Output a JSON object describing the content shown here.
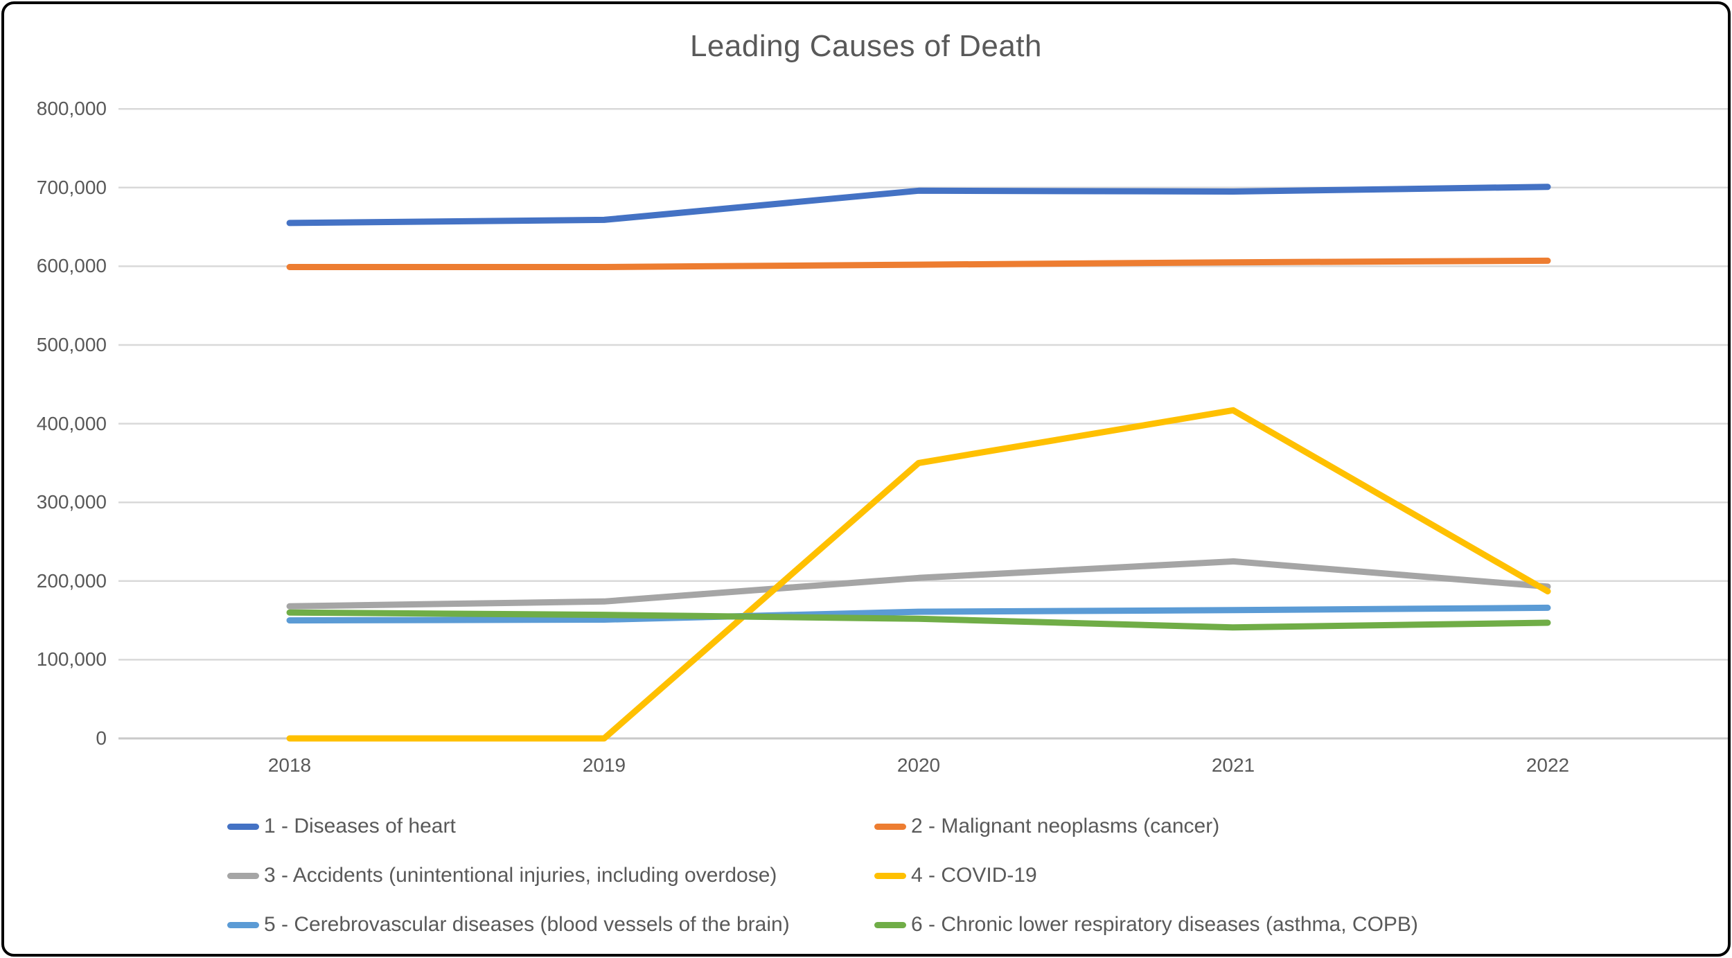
{
  "chart_data": {
    "type": "line",
    "title": "Leading Causes of Death",
    "x_labels": [
      "2018",
      "2019",
      "2020",
      "2021",
      "2022"
    ],
    "ylim": [
      0,
      800000
    ],
    "ytick_step": 100000,
    "ytick_labels": [
      "0",
      "100,000",
      "200,000",
      "300,000",
      "400,000",
      "500,000",
      "600,000",
      "700,000",
      "800,000"
    ],
    "grid": true,
    "legend_position": "bottom-two-columns",
    "series": [
      {
        "name": "1 - Diseases of heart",
        "color": "#4472C4",
        "values": [
          655000,
          659000,
          696000,
          695000,
          701000
        ]
      },
      {
        "name": "2 - Malignant neoplasms (cancer)",
        "color": "#ED7D31",
        "values": [
          599000,
          599000,
          602000,
          605000,
          607000
        ]
      },
      {
        "name": "3 - Accidents (unintentional injuries, including overdose)",
        "color": "#A5A5A5",
        "values": [
          168000,
          174000,
          204000,
          225000,
          193000
        ]
      },
      {
        "name": "4 - COVID-19",
        "color": "#FFC000",
        "values": [
          0,
          0,
          350000,
          417000,
          187000
        ]
      },
      {
        "name": "5 - Cerebrovascular diseases (blood vessels of the brain)",
        "color": "#5B9BD5",
        "values": [
          150000,
          151000,
          161000,
          163000,
          166000
        ]
      },
      {
        "name": "6 - Chronic lower respiratory diseases (asthma, COPB)",
        "color": "#70AD47",
        "values": [
          160000,
          157000,
          152000,
          141000,
          147000
        ]
      }
    ],
    "colors": {
      "text": "#595959",
      "gridline": "#D9D9D9",
      "axis_line": "#C9C9C9",
      "frame_border": "#000000",
      "background": "#FFFFFF"
    }
  }
}
